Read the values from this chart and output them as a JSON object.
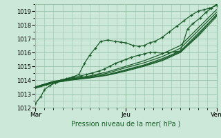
{
  "xlabel": "Pression niveau de la mer( hPa )",
  "bg_color": "#cce8d8",
  "grid_color": "#99c4aa",
  "line_color": "#1a5c2a",
  "ylim": [
    1012,
    1019.5
  ],
  "yticks": [
    1012,
    1013,
    1014,
    1015,
    1016,
    1017,
    1018,
    1019
  ],
  "xtick_labels": [
    "Mar",
    "Jeu",
    "Ven"
  ],
  "xtick_positions": [
    0.0,
    0.5,
    1.0
  ],
  "series": [
    {
      "x": [
        0.0,
        0.03,
        0.05,
        0.08,
        0.11,
        0.14,
        0.17,
        0.2,
        0.24,
        0.27,
        0.3,
        0.33,
        0.36,
        0.4,
        0.44,
        0.47,
        0.5,
        0.54,
        0.57,
        0.6,
        0.63,
        0.66,
        0.7,
        0.74,
        0.78,
        0.82,
        0.86,
        0.9,
        0.93,
        0.96,
        1.0
      ],
      "y": [
        1012.3,
        1012.8,
        1013.3,
        1013.6,
        1013.8,
        1014.0,
        1014.1,
        1014.2,
        1014.4,
        1015.2,
        1015.8,
        1016.3,
        1016.8,
        1016.9,
        1016.8,
        1016.75,
        1016.7,
        1016.5,
        1016.45,
        1016.5,
        1016.7,
        1016.8,
        1017.1,
        1017.5,
        1017.9,
        1018.3,
        1018.7,
        1019.0,
        1019.1,
        1019.2,
        1019.4
      ],
      "marker": true
    },
    {
      "x": [
        0.0,
        0.03,
        0.06,
        0.09,
        0.12,
        0.15,
        0.18,
        0.21,
        0.25,
        0.28,
        0.31,
        0.35,
        0.38,
        0.41,
        0.44,
        0.47,
        0.5,
        0.53,
        0.57,
        0.6,
        0.63,
        0.66,
        0.7,
        0.73,
        0.77,
        0.8,
        0.84,
        0.87,
        0.91,
        0.94,
        0.97,
        1.0
      ],
      "y": [
        1013.5,
        1013.6,
        1013.7,
        1013.8,
        1013.9,
        1014.0,
        1014.1,
        1014.2,
        1014.3,
        1014.4,
        1014.5,
        1014.65,
        1014.8,
        1015.0,
        1015.2,
        1015.35,
        1015.5,
        1015.65,
        1015.8,
        1015.9,
        1016.0,
        1016.0,
        1015.95,
        1016.0,
        1016.05,
        1016.1,
        1017.7,
        1018.1,
        1018.5,
        1018.9,
        1019.2,
        1019.5
      ],
      "marker": true
    },
    {
      "x": [
        0.0,
        0.1,
        0.2,
        0.3,
        0.4,
        0.5,
        0.6,
        0.7,
        0.8,
        0.9,
        1.0
      ],
      "y": [
        1013.5,
        1013.9,
        1014.1,
        1014.3,
        1014.6,
        1015.0,
        1015.4,
        1015.9,
        1016.5,
        1017.8,
        1019.1
      ],
      "marker": false
    },
    {
      "x": [
        0.0,
        0.1,
        0.2,
        0.3,
        0.4,
        0.5,
        0.6,
        0.7,
        0.8,
        0.9,
        1.0
      ],
      "y": [
        1013.5,
        1013.9,
        1014.1,
        1014.25,
        1014.5,
        1014.9,
        1015.25,
        1015.7,
        1016.3,
        1017.6,
        1018.9
      ],
      "marker": false
    },
    {
      "x": [
        0.0,
        0.1,
        0.2,
        0.3,
        0.4,
        0.5,
        0.6,
        0.7,
        0.8,
        0.9,
        1.0
      ],
      "y": [
        1013.5,
        1013.85,
        1014.05,
        1014.2,
        1014.4,
        1014.75,
        1015.1,
        1015.55,
        1016.1,
        1017.4,
        1018.7
      ],
      "marker": false
    },
    {
      "x": [
        0.0,
        0.1,
        0.2,
        0.3,
        0.4,
        0.5,
        0.6,
        0.7,
        0.8,
        0.9,
        1.0
      ],
      "y": [
        1013.4,
        1013.8,
        1014.0,
        1014.15,
        1014.35,
        1014.65,
        1015.0,
        1015.4,
        1016.0,
        1017.2,
        1018.6
      ],
      "marker": false
    },
    {
      "x": [
        0.0,
        0.1,
        0.2,
        0.3,
        0.4,
        0.5,
        0.6,
        0.7,
        0.8,
        0.9,
        1.0
      ],
      "y": [
        1013.45,
        1013.82,
        1014.02,
        1014.17,
        1014.38,
        1014.7,
        1015.05,
        1015.47,
        1016.05,
        1017.3,
        1018.75
      ],
      "marker": false
    }
  ]
}
